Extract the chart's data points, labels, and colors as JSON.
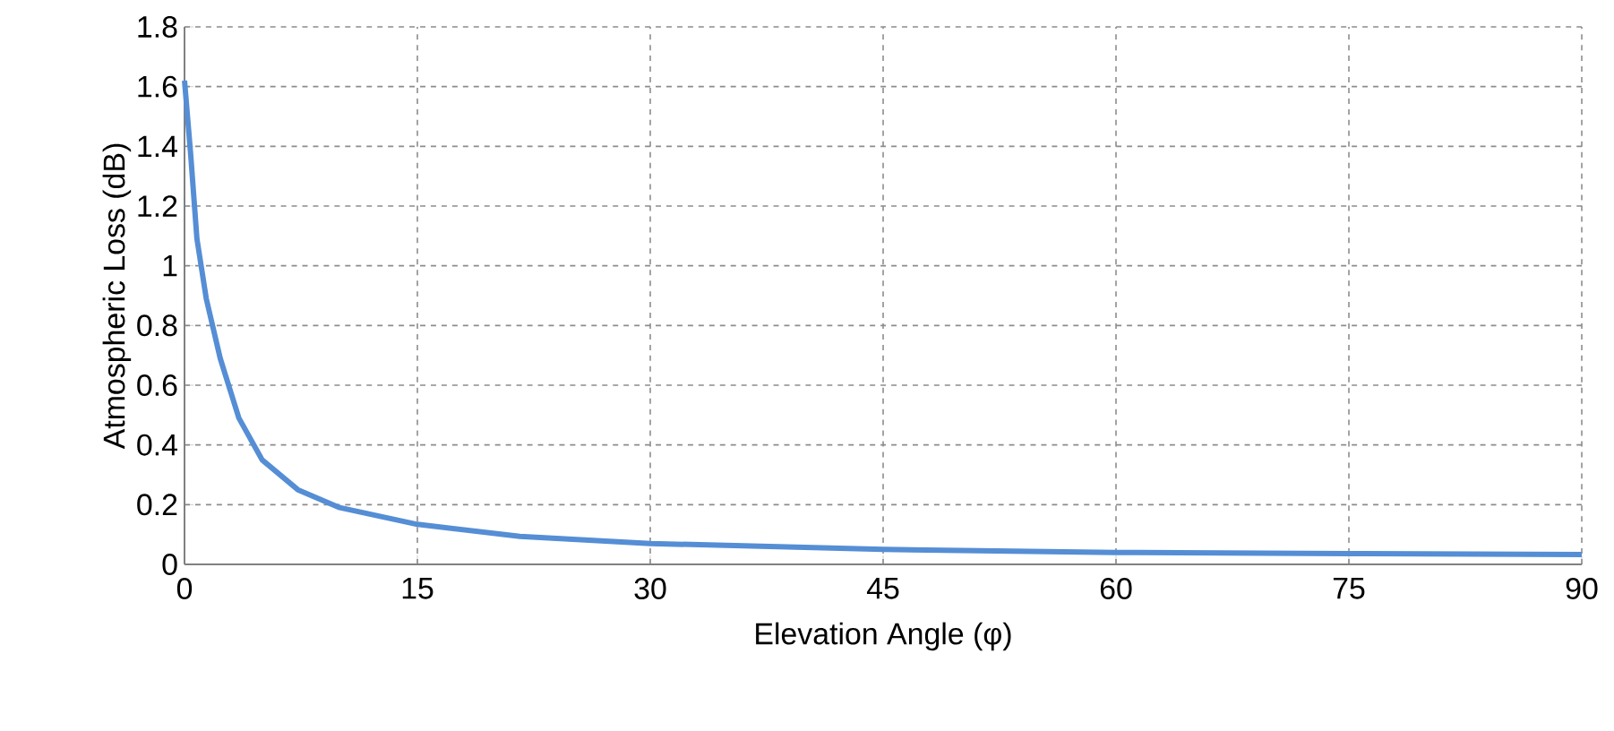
{
  "chart_data": {
    "type": "line",
    "xlabel": "Elevation Angle (φ)",
    "ylabel": "Atmospheric  Loss  (dB)",
    "xlim": [
      0,
      90
    ],
    "xticks": [
      0,
      15,
      30,
      45,
      60,
      75,
      90
    ],
    "ylim": [
      0,
      1.8
    ],
    "yticks": [
      0,
      0.2,
      0.4,
      0.6,
      0.8,
      1,
      1.2,
      1.4,
      1.6,
      1.8
    ],
    "grid": true,
    "marker": "none",
    "line_style": "solid",
    "series": [
      {
        "color": "#558ed5",
        "x": [
          0,
          0.4,
          0.8,
          1.4,
          2.3,
          3.5,
          5,
          7.3,
          10,
          15,
          21.6,
          30,
          45,
          60,
          75,
          90
        ],
        "values": [
          1.62,
          1.37,
          1.09,
          0.89,
          0.69,
          0.49,
          0.35,
          0.25,
          0.19,
          0.134,
          0.094,
          0.07,
          0.05,
          0.04,
          0.036,
          0.033
        ]
      }
    ]
  }
}
